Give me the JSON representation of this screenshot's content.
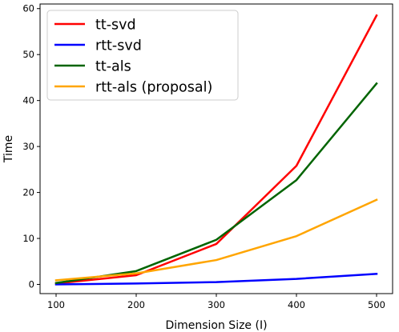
{
  "chart_data": {
    "type": "line",
    "title": "",
    "xlabel": "Dimension Size (I)",
    "ylabel": "Time",
    "x": [
      100,
      200,
      300,
      400,
      500
    ],
    "xlim": [
      80,
      520
    ],
    "ylim": [
      -2,
      61
    ],
    "xticks": [
      100,
      200,
      300,
      400,
      500
    ],
    "yticks": [
      0,
      10,
      20,
      30,
      40,
      50,
      60
    ],
    "grid": false,
    "legend_position": "top-left",
    "series": [
      {
        "name": "tt-svd",
        "color": "#ff0000",
        "values": [
          0.2,
          2.0,
          8.8,
          25.8,
          58.5
        ]
      },
      {
        "name": "rtt-svd",
        "color": "#0000ff",
        "values": [
          0.0,
          0.2,
          0.5,
          1.2,
          2.3
        ]
      },
      {
        "name": "tt-als",
        "color": "#006400",
        "values": [
          0.3,
          2.9,
          9.7,
          22.7,
          43.7
        ]
      },
      {
        "name": "rtt-als (proposal)",
        "color": "#ffa500",
        "values": [
          0.9,
          2.4,
          5.3,
          10.5,
          18.4
        ]
      }
    ]
  }
}
